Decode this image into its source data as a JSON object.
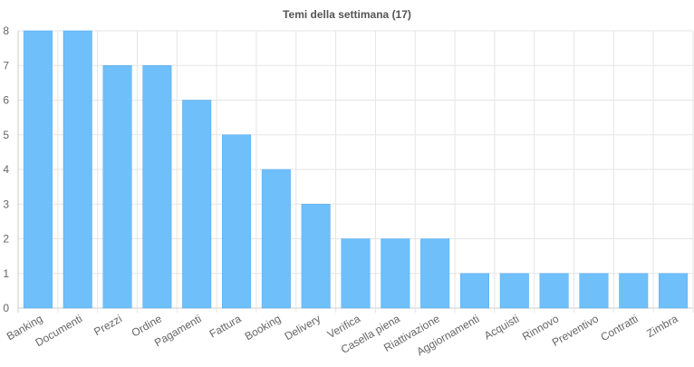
{
  "chart_data": {
    "type": "bar",
    "title": "Temi della settimana (17)",
    "xlabel": "",
    "ylabel": "",
    "categories": [
      "Banking",
      "Documenti",
      "Prezzi",
      "Ordine",
      "Pagamenti",
      "Fattura",
      "Booking",
      "Delivery",
      "Verifica",
      "Casella piena",
      "Riattivazione",
      "Aggiornamenti",
      "Acquisti",
      "Rinnovo",
      "Preventivo",
      "Contratti",
      "Zimbra"
    ],
    "values": [
      8,
      8,
      7,
      7,
      6,
      5,
      4,
      3,
      2,
      2,
      2,
      1,
      1,
      1,
      1,
      1,
      1
    ],
    "ylim": [
      0,
      8
    ],
    "yticks": [
      0,
      1,
      2,
      3,
      4,
      5,
      6,
      7,
      8
    ],
    "grid": true,
    "legend": "none",
    "colors": {
      "bar": "#6ebffa",
      "bar_border": "#5aaef0",
      "grid": "#e5e5e5",
      "axis": "#cccccc",
      "text": "#666666",
      "title": "#555555"
    }
  }
}
